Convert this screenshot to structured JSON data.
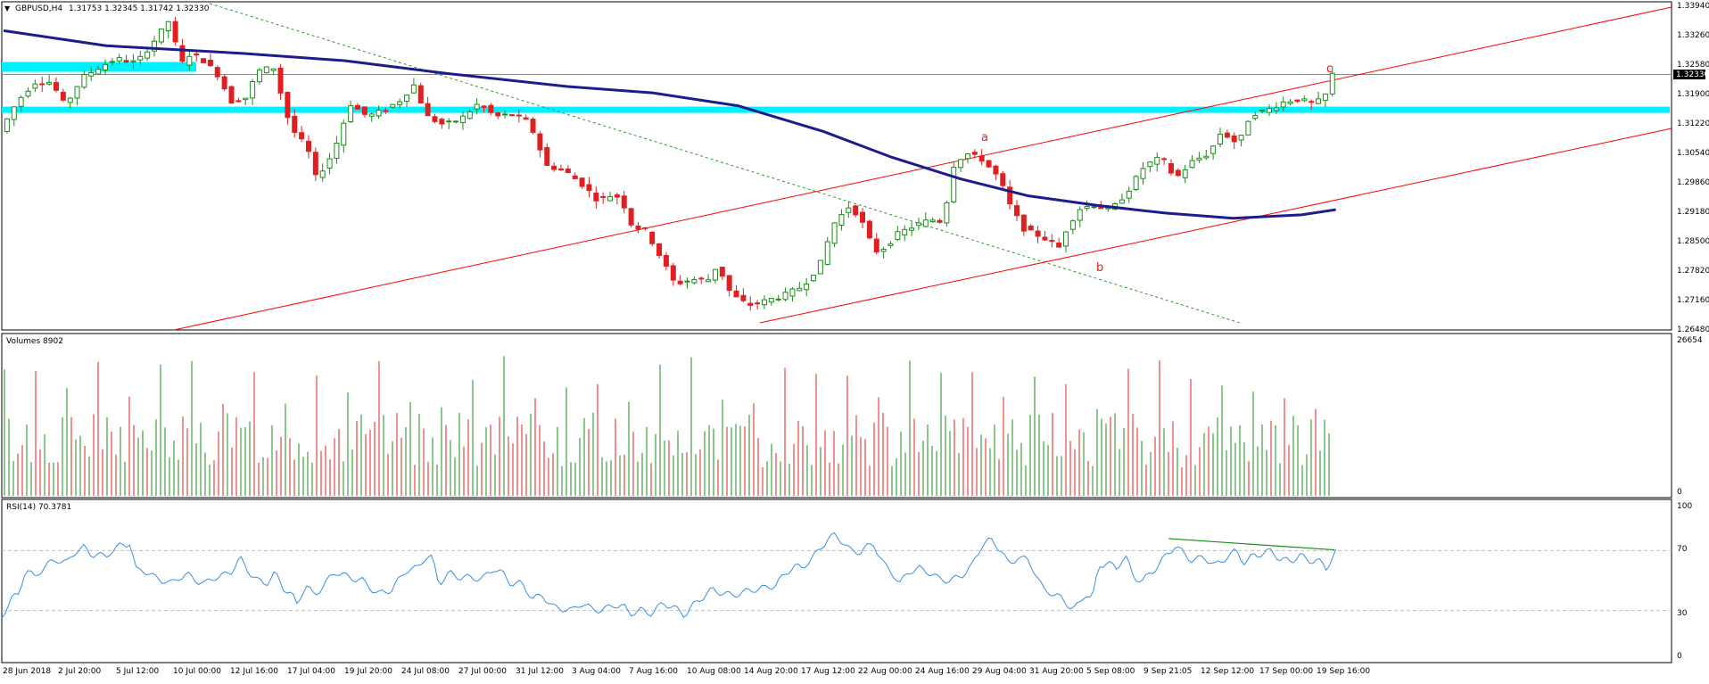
{
  "symbol_header": {
    "symbol": "GBPUSD,H4",
    "ohlc": "1.31753 1.32345 1.31742 1.32330"
  },
  "price_axis": {
    "ticks": [
      "1.33940",
      "1.33260",
      "1.32580",
      "1.31900",
      "1.31220",
      "1.30540",
      "1.29860",
      "1.29180",
      "1.28500",
      "1.27820",
      "1.27160",
      "1.26480"
    ],
    "current_price": "1.32330"
  },
  "volume_pane": {
    "label": "Volumes 8902",
    "max_tick": "26654",
    "min_tick": "0"
  },
  "rsi_pane": {
    "label": "RSI(14) 70.3781",
    "ticks": [
      "100",
      "70",
      "30",
      "0"
    ]
  },
  "time_axis": {
    "labels": [
      "28 Jun 2018",
      "2 Jul 20:00",
      "5 Jul 12:00",
      "10 Jul 00:00",
      "12 Jul 16:00",
      "17 Jul 04:00",
      "19 Jul 20:00",
      "24 Jul 08:00",
      "27 Jul 00:00",
      "31 Jul 12:00",
      "3 Aug 04:00",
      "7 Aug 16:00",
      "10 Aug 08:00",
      "14 Aug 20:00",
      "17 Aug 12:00",
      "22 Aug 00:00",
      "24 Aug 16:00",
      "29 Aug 04:00",
      "31 Aug 20:00",
      "5 Sep 08:00",
      "9 Sep 21:05",
      "12 Sep 12:00",
      "17 Sep 00:00",
      "19 Sep 16:00"
    ]
  },
  "wave_labels": {
    "a": "a",
    "b": "b",
    "c": "c"
  },
  "colors": {
    "bull": "#1a8c1a",
    "bear": "#e02020",
    "ma": "#1c1c8c",
    "zone": "#00f0ff",
    "channel": "#ff0000",
    "trend_dotted": "#2a9a2a",
    "rsi": "#3a8fe0",
    "rsi_trend": "#1a8c1a",
    "grid_dash": "#c0c0c0"
  },
  "chart_data": {
    "type": "candlestick",
    "symbol": "GBPUSD",
    "timeframe": "H4",
    "y_range": [
      1.2648,
      1.3394
    ],
    "price_path": [
      [
        0,
        1.31
      ],
      [
        10,
        1.317
      ],
      [
        20,
        1.3215
      ],
      [
        30,
        1.3215
      ],
      [
        38,
        1.316
      ],
      [
        48,
        1.3225
      ],
      [
        58,
        1.325
      ],
      [
        68,
        1.327
      ],
      [
        80,
        1.326
      ],
      [
        92,
        1.332
      ],
      [
        100,
        1.3365
      ],
      [
        105,
        1.325
      ],
      [
        110,
        1.328
      ],
      [
        118,
        1.327
      ],
      [
        128,
        1.323
      ],
      [
        135,
        1.317
      ],
      [
        145,
        1.318
      ],
      [
        150,
        1.324
      ],
      [
        160,
        1.325
      ],
      [
        170,
        1.311
      ],
      [
        180,
        1.306
      ],
      [
        185,
        1.299
      ],
      [
        195,
        1.305
      ],
      [
        205,
        1.3165
      ],
      [
        215,
        1.3135
      ],
      [
        225,
        1.315
      ],
      [
        235,
        1.3175
      ],
      [
        242,
        1.321
      ],
      [
        250,
        1.3135
      ],
      [
        260,
        1.3115
      ],
      [
        270,
        1.313
      ],
      [
        280,
        1.3165
      ],
      [
        290,
        1.3135
      ],
      [
        300,
        1.314
      ],
      [
        310,
        1.312
      ],
      [
        320,
        1.302
      ],
      [
        330,
        1.301
      ],
      [
        340,
        1.298
      ],
      [
        350,
        1.294
      ],
      [
        360,
        1.2955
      ],
      [
        365,
        1.293
      ],
      [
        370,
        1.288
      ],
      [
        378,
        1.287
      ],
      [
        385,
        1.282
      ],
      [
        395,
        1.2745
      ],
      [
        405,
        1.2755
      ],
      [
        415,
        1.2755
      ],
      [
        420,
        1.279
      ],
      [
        428,
        1.272
      ],
      [
        438,
        1.2695
      ],
      [
        448,
        1.2705
      ],
      [
        460,
        1.272
      ],
      [
        470,
        1.274
      ],
      [
        480,
        1.279
      ],
      [
        488,
        1.2885
      ],
      [
        498,
        1.293
      ],
      [
        505,
        1.2885
      ],
      [
        512,
        1.282
      ],
      [
        518,
        1.283
      ],
      [
        525,
        1.286
      ],
      [
        535,
        1.288
      ],
      [
        545,
        1.2895
      ],
      [
        552,
        1.289
      ],
      [
        558,
        1.302
      ],
      [
        565,
        1.305
      ],
      [
        575,
        1.3035
      ],
      [
        585,
        1.299
      ],
      [
        592,
        1.292
      ],
      [
        600,
        1.287
      ],
      [
        610,
        1.2855
      ],
      [
        620,
        1.283
      ],
      [
        625,
        1.288
      ],
      [
        632,
        1.292
      ],
      [
        640,
        1.293
      ],
      [
        650,
        1.2915
      ],
      [
        660,
        1.296
      ],
      [
        670,
        1.302
      ],
      [
        680,
        1.304
      ],
      [
        688,
        1.299
      ],
      [
        698,
        1.303
      ],
      [
        708,
        1.305
      ],
      [
        715,
        1.31
      ],
      [
        725,
        1.307
      ],
      [
        732,
        1.314
      ],
      [
        742,
        1.315
      ],
      [
        752,
        1.317
      ],
      [
        760,
        1.3175
      ],
      [
        768,
        1.3165
      ],
      [
        775,
        1.3175
      ],
      [
        780,
        1.3233
      ]
    ],
    "volume_pattern_max": 26654,
    "rsi_path": [
      [
        0,
        25
      ],
      [
        8,
        38
      ],
      [
        15,
        40
      ],
      [
        22,
        58
      ],
      [
        30,
        52
      ],
      [
        40,
        60
      ],
      [
        50,
        64
      ],
      [
        60,
        62
      ],
      [
        68,
        70
      ],
      [
        75,
        72
      ],
      [
        82,
        67
      ],
      [
        88,
        68
      ],
      [
        95,
        65
      ],
      [
        100,
        70
      ],
      [
        108,
        73
      ],
      [
        114,
        74
      ],
      [
        118,
        76
      ],
      [
        122,
        57
      ],
      [
        130,
        57
      ],
      [
        140,
        52
      ],
      [
        148,
        50
      ],
      [
        155,
        48
      ],
      [
        162,
        52
      ],
      [
        170,
        54
      ],
      [
        178,
        50
      ],
      [
        186,
        48
      ],
      [
        194,
        52
      ],
      [
        202,
        53
      ],
      [
        210,
        56
      ],
      [
        218,
        65
      ],
      [
        226,
        56
      ],
      [
        234,
        50
      ],
      [
        242,
        48
      ],
      [
        250,
        55
      ],
      [
        258,
        45
      ],
      [
        266,
        40
      ],
      [
        270,
        34
      ],
      [
        278,
        47
      ],
      [
        286,
        40
      ],
      [
        295,
        47
      ],
      [
        305,
        56
      ],
      [
        318,
        52
      ],
      [
        330,
        50
      ],
      [
        344,
        41
      ],
      [
        357,
        44
      ],
      [
        370,
        57
      ],
      [
        380,
        58
      ],
      [
        388,
        66
      ],
      [
        394,
        65
      ],
      [
        400,
        48
      ],
      [
        410,
        55
      ],
      [
        420,
        52
      ],
      [
        430,
        52
      ],
      [
        440,
        51
      ],
      [
        450,
        58
      ],
      [
        458,
        55
      ],
      [
        466,
        48
      ],
      [
        476,
        48
      ],
      [
        486,
        38
      ],
      [
        495,
        40
      ],
      [
        505,
        32
      ],
      [
        515,
        31
      ],
      [
        522,
        30
      ],
      [
        530,
        35
      ],
      [
        540,
        31
      ],
      [
        550,
        30
      ],
      [
        560,
        34
      ],
      [
        570,
        32
      ],
      [
        575,
        28
      ],
      [
        585,
        30
      ],
      [
        595,
        28
      ],
      [
        605,
        35
      ],
      [
        615,
        32
      ],
      [
        625,
        27
      ],
      [
        632,
        33
      ],
      [
        640,
        38
      ],
      [
        650,
        44
      ],
      [
        658,
        42
      ],
      [
        668,
        40
      ],
      [
        678,
        42
      ],
      [
        688,
        44
      ],
      [
        698,
        45
      ],
      [
        708,
        47
      ],
      [
        718,
        55
      ],
      [
        725,
        60
      ],
      [
        732,
        58
      ],
      [
        740,
        64
      ],
      [
        748,
        70
      ],
      [
        756,
        78
      ],
      [
        762,
        80
      ],
      [
        770,
        76
      ],
      [
        778,
        69
      ],
      [
        785,
        69
      ],
      [
        790,
        72
      ],
      [
        798,
        74
      ],
      [
        808,
        60
      ],
      [
        815,
        55
      ],
      [
        822,
        48
      ],
      [
        830,
        56
      ],
      [
        840,
        58
      ],
      [
        850,
        55
      ],
      [
        858,
        51
      ],
      [
        868,
        50
      ],
      [
        878,
        53
      ],
      [
        888,
        60
      ],
      [
        898,
        75
      ],
      [
        905,
        77
      ],
      [
        915,
        70
      ],
      [
        922,
        60
      ],
      [
        930,
        66
      ],
      [
        940,
        63
      ],
      [
        946,
        55
      ],
      [
        953,
        44
      ],
      [
        960,
        42
      ],
      [
        970,
        38
      ],
      [
        980,
        31
      ],
      [
        986,
        34
      ],
      [
        992,
        42
      ],
      [
        998,
        37
      ],
      [
        1004,
        60
      ],
      [
        1012,
        62
      ],
      [
        1020,
        58
      ],
      [
        1028,
        67
      ],
      [
        1036,
        52
      ],
      [
        1044,
        50
      ],
      [
        1052,
        55
      ],
      [
        1058,
        60
      ],
      [
        1066,
        67
      ],
      [
        1074,
        73
      ],
      [
        1082,
        68
      ],
      [
        1090,
        63
      ],
      [
        1100,
        66
      ],
      [
        1110,
        60
      ],
      [
        1120,
        65
      ],
      [
        1130,
        70
      ],
      [
        1138,
        61
      ],
      [
        1145,
        67
      ],
      [
        1155,
        68
      ],
      [
        1162,
        70
      ],
      [
        1170,
        64
      ],
      [
        1180,
        63
      ],
      [
        1188,
        67
      ],
      [
        1196,
        63
      ],
      [
        1204,
        64
      ],
      [
        1212,
        58
      ],
      [
        1218,
        66
      ],
      [
        1222,
        70.38
      ]
    ],
    "rsi_levels": [
      30,
      70
    ],
    "wave_points": [
      {
        "label": "a",
        "price": 1.3052
      },
      {
        "label": "b",
        "price": 1.2798
      },
      {
        "label": "c",
        "price": 1.3233
      }
    ]
  }
}
